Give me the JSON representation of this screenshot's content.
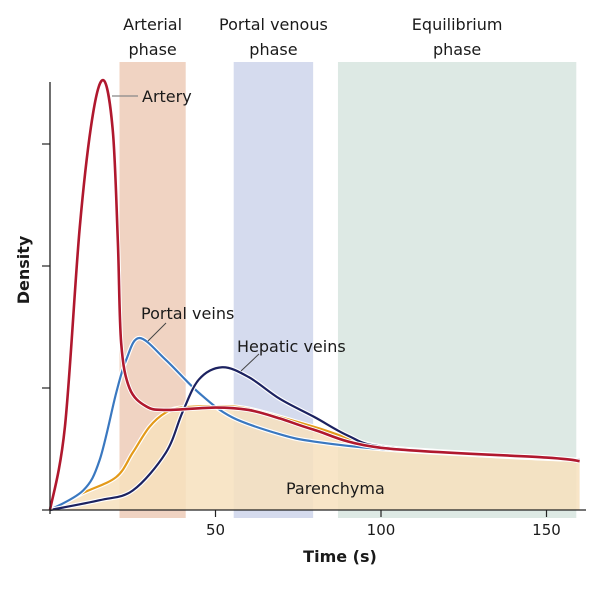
{
  "chart_data": {
    "type": "line",
    "xlabel": "Time (s)",
    "ylabel": "Density",
    "xlim": [
      0,
      162
    ],
    "ylim": [
      0,
      3.55
    ],
    "x_ticks": [
      50,
      100,
      150
    ],
    "y_ticks": [
      0,
      1,
      2,
      3
    ],
    "y_tick_labels_shown": false,
    "grid": false,
    "phases": [
      {
        "name": "Arterial phase",
        "lines": [
          "Arterial",
          "phase"
        ],
        "start": 21,
        "end": 41,
        "color": "#f0d3c2"
      },
      {
        "name": "Portal venous phase",
        "lines": [
          "Portal venous",
          "phase"
        ],
        "start": 55.5,
        "end": 79.5,
        "color": "#d5dbee"
      },
      {
        "name": "Equilibrium phase",
        "lines": [
          "Equilibrium",
          "phase"
        ],
        "start": 87,
        "end": 159,
        "color": "#dde9e4"
      }
    ],
    "series": [
      {
        "name": "Parenchyma",
        "color": "#e39a1a",
        "fill": "#f7e1bd",
        "x": [
          0,
          10,
          20,
          25,
          30,
          35,
          40,
          50,
          60,
          80,
          100,
          130,
          160
        ],
        "y": [
          0,
          0.14,
          0.27,
          0.47,
          0.68,
          0.8,
          0.84,
          0.85,
          0.83,
          0.68,
          0.52,
          0.45,
          0.41
        ]
      },
      {
        "name": "Portal veins",
        "color": "#3a78c0",
        "x": [
          0,
          10,
          15,
          20,
          23,
          27,
          35,
          45,
          55,
          69.5,
          80,
          100,
          130,
          160
        ],
        "y": [
          0,
          0.16,
          0.41,
          0.96,
          1.23,
          1.41,
          1.23,
          0.96,
          0.76,
          0.62,
          0.56,
          0.5,
          0.45,
          0.41
        ]
      },
      {
        "name": "Hepatic veins",
        "color": "#1c2260",
        "x": [
          0,
          15,
          25,
          35,
          40,
          45,
          52,
          60,
          69.5,
          80,
          90,
          100,
          130,
          160
        ],
        "y": [
          0,
          0.08,
          0.16,
          0.47,
          0.8,
          1.07,
          1.17,
          1.09,
          0.91,
          0.76,
          0.61,
          0.52,
          0.46,
          0.41
        ]
      },
      {
        "name": "Artery",
        "color": "#b0182e",
        "x": [
          0,
          4.5,
          9,
          13,
          16.3,
          19,
          20.5,
          21.5,
          24,
          29,
          35,
          50,
          60,
          69.5,
          79.5,
          100,
          150,
          160
        ],
        "y": [
          0,
          0.68,
          2.32,
          3.25,
          3.52,
          3.1,
          2.2,
          1.37,
          1.0,
          0.85,
          0.82,
          0.84,
          0.82,
          0.75,
          0.66,
          0.51,
          0.43,
          0.4
        ]
      }
    ],
    "annotations": [
      {
        "text": "Artery"
      },
      {
        "text": "Portal veins"
      },
      {
        "text": "Hepatic veins"
      },
      {
        "text": "Parenchyma"
      }
    ]
  }
}
